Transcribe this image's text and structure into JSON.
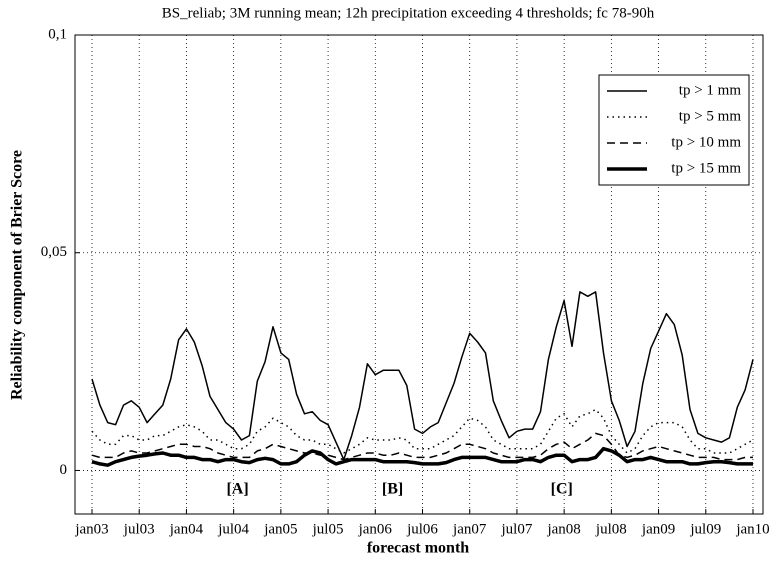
{
  "chart_data": {
    "type": "line",
    "title": "BS_reliab; 3M running mean; 12h precipitation exceeding 4 thresholds; fc 78-90h",
    "xlabel": "forecast month",
    "ylabel": "Reliability component of Brier Score",
    "categories": [
      "jan03",
      null,
      null,
      null,
      null,
      null,
      "jul03",
      null,
      null,
      null,
      null,
      null,
      "jan04",
      null,
      null,
      null,
      null,
      null,
      "jul04",
      null,
      null,
      null,
      null,
      null,
      "jan05",
      null,
      null,
      null,
      null,
      null,
      "jul05",
      null,
      null,
      null,
      null,
      null,
      "jan06",
      null,
      null,
      null,
      null,
      null,
      "jul06",
      null,
      null,
      null,
      null,
      null,
      "jan07",
      null,
      null,
      null,
      null,
      null,
      "jul07",
      null,
      null,
      null,
      null,
      null,
      "jan08",
      null,
      null,
      null,
      null,
      null,
      "jul08",
      null,
      null,
      null,
      null,
      null,
      "jan09",
      null,
      null,
      null,
      null,
      null,
      "jul09",
      null,
      null,
      null,
      null,
      null,
      "jan10"
    ],
    "ylim": [
      -0.01,
      0.1
    ],
    "yticks": [
      {
        "value": 0.1,
        "label": "0,1"
      },
      {
        "value": 0.05,
        "label": "0,05"
      },
      0
    ],
    "grid": true,
    "legend": "upper right",
    "series": [
      {
        "name": "tp > 1 mm",
        "color": "#000000",
        "linestyle": "solid",
        "linewidth": 1.5,
        "values": [
          0.021,
          0.015,
          0.011,
          0.0105,
          0.015,
          0.016,
          0.0145,
          0.011,
          0.013,
          0.015,
          0.021,
          0.03,
          0.0325,
          0.0295,
          0.024,
          0.017,
          0.014,
          0.011,
          0.0095,
          0.007,
          0.008,
          0.0205,
          0.025,
          0.033,
          0.027,
          0.0255,
          0.0175,
          0.013,
          0.0135,
          0.0115,
          0.0105,
          0.0065,
          0.0025,
          0.008,
          0.0145,
          0.0245,
          0.022,
          0.023,
          0.023,
          0.023,
          0.0195,
          0.0095,
          0.0085,
          0.01,
          0.011,
          0.0155,
          0.02,
          0.026,
          0.0315,
          0.0295,
          0.027,
          0.016,
          0.0115,
          0.0075,
          0.009,
          0.0095,
          0.0095,
          0.0135,
          0.0255,
          0.033,
          0.039,
          0.0285,
          0.041,
          0.04,
          0.041,
          0.027,
          0.016,
          0.0115,
          0.0055,
          0.009,
          0.02,
          0.028,
          0.032,
          0.036,
          0.0335,
          0.0265,
          0.014,
          0.0085,
          0.0075,
          0.007,
          0.0065,
          0.0075,
          0.0145,
          0.0185,
          0.0255
        ]
      },
      {
        "name": "tp > 5 mm",
        "color": "#000000",
        "linestyle": "dotted",
        "linewidth": 1.5,
        "values": [
          0.009,
          0.007,
          0.006,
          0.006,
          0.008,
          0.008,
          0.007,
          0.007,
          0.008,
          0.008,
          0.009,
          0.01,
          0.0105,
          0.01,
          0.009,
          0.007,
          0.007,
          0.006,
          0.005,
          0.005,
          0.006,
          0.009,
          0.01,
          0.012,
          0.011,
          0.01,
          0.008,
          0.007,
          0.007,
          0.006,
          0.006,
          0.005,
          0.004,
          0.005,
          0.006,
          0.0075,
          0.007,
          0.007,
          0.007,
          0.0075,
          0.007,
          0.005,
          0.005,
          0.005,
          0.006,
          0.007,
          0.008,
          0.01,
          0.012,
          0.0115,
          0.01,
          0.007,
          0.006,
          0.005,
          0.005,
          0.005,
          0.005,
          0.006,
          0.009,
          0.012,
          0.013,
          0.01,
          0.0125,
          0.013,
          0.014,
          0.012,
          0.008,
          0.006,
          0.004,
          0.005,
          0.008,
          0.01,
          0.011,
          0.011,
          0.011,
          0.01,
          0.007,
          0.005,
          0.005,
          0.004,
          0.004,
          0.004,
          0.005,
          0.006,
          0.007
        ]
      },
      {
        "name": "tp > 10 mm",
        "color": "#000000",
        "linestyle": "dashed",
        "linewidth": 1.5,
        "values": [
          0.0035,
          0.003,
          0.003,
          0.003,
          0.004,
          0.0045,
          0.004,
          0.004,
          0.0045,
          0.005,
          0.0055,
          0.006,
          0.006,
          0.0055,
          0.0055,
          0.005,
          0.004,
          0.0035,
          0.003,
          0.003,
          0.003,
          0.0045,
          0.005,
          0.006,
          0.0055,
          0.005,
          0.0045,
          0.004,
          0.004,
          0.0035,
          0.0035,
          0.003,
          0.0025,
          0.003,
          0.0035,
          0.004,
          0.004,
          0.0035,
          0.0035,
          0.004,
          0.0035,
          0.003,
          0.003,
          0.003,
          0.0035,
          0.004,
          0.005,
          0.006,
          0.006,
          0.0055,
          0.005,
          0.004,
          0.0035,
          0.003,
          0.003,
          0.003,
          0.003,
          0.0035,
          0.005,
          0.006,
          0.0065,
          0.005,
          0.006,
          0.007,
          0.0085,
          0.008,
          0.006,
          0.0035,
          0.003,
          0.0035,
          0.0045,
          0.005,
          0.0055,
          0.005,
          0.0045,
          0.004,
          0.0035,
          0.003,
          0.003,
          0.003,
          0.0025,
          0.0025,
          0.0025,
          0.003,
          0.003
        ]
      },
      {
        "name": "tp > 15 mm",
        "color": "#000000",
        "linestyle": "solid",
        "linewidth": 3.5,
        "values": [
          0.002,
          0.0015,
          0.0012,
          0.002,
          0.0025,
          0.003,
          0.0033,
          0.0035,
          0.0038,
          0.004,
          0.0035,
          0.0035,
          0.003,
          0.003,
          0.0025,
          0.0025,
          0.002,
          0.0025,
          0.0025,
          0.002,
          0.0018,
          0.0025,
          0.0028,
          0.0025,
          0.0015,
          0.0015,
          0.002,
          0.0035,
          0.0045,
          0.004,
          0.0025,
          0.0015,
          0.002,
          0.0025,
          0.0025,
          0.0025,
          0.0025,
          0.002,
          0.002,
          0.002,
          0.002,
          0.0018,
          0.0015,
          0.0015,
          0.0015,
          0.0018,
          0.0025,
          0.003,
          0.003,
          0.003,
          0.003,
          0.0025,
          0.002,
          0.002,
          0.002,
          0.0025,
          0.0025,
          0.002,
          0.003,
          0.0035,
          0.0035,
          0.002,
          0.0025,
          0.0025,
          0.003,
          0.005,
          0.0045,
          0.0035,
          0.002,
          0.0025,
          0.0025,
          0.003,
          0.0025,
          0.002,
          0.002,
          0.002,
          0.0015,
          0.0015,
          0.0018,
          0.002,
          0.002,
          0.0018,
          0.0015,
          0.0015,
          0.0015
        ]
      }
    ],
    "annotations": [
      {
        "text": "[A]",
        "x": 18.5,
        "y": -0.0045
      },
      {
        "text": "[B]",
        "x": 38.2,
        "y": -0.0045
      },
      {
        "text": "[C]",
        "x": 59.7,
        "y": -0.0045
      }
    ]
  }
}
